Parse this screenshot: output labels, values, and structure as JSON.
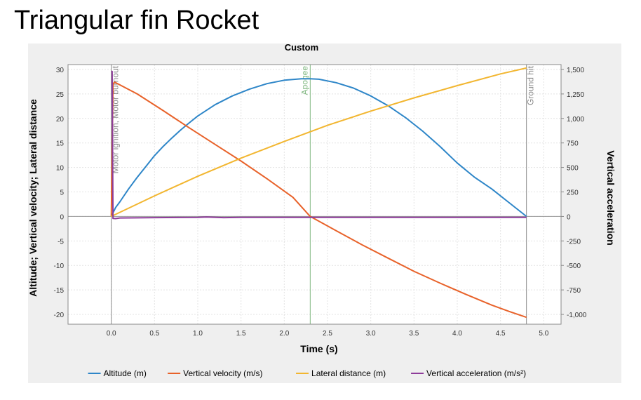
{
  "page": {
    "title": "Triangular fin Rocket"
  },
  "chart_data": {
    "type": "line",
    "title": "Custom",
    "xlabel": "Time (s)",
    "ylabel_left": "Altitude; Vertical velocity; Lateral distance",
    "ylabel_right": "Vertical acceleration",
    "xlim": [
      -0.5,
      5.2
    ],
    "ylim_left": [
      -22,
      31
    ],
    "ylim_right": [
      -1100,
      1550
    ],
    "x_ticks": [
      "0.0",
      "0.5",
      "1.0",
      "1.5",
      "2.0",
      "2.5",
      "3.0",
      "3.5",
      "4.0",
      "4.5",
      "5.0"
    ],
    "y_ticks_left": [
      "-20",
      "-15",
      "-10",
      "-5",
      "0",
      "5",
      "10",
      "15",
      "20",
      "25",
      "30"
    ],
    "y_ticks_right": [
      "-1,000",
      "-750",
      "-500",
      "-250",
      "0",
      "250",
      "500",
      "750",
      "1,000",
      "1,250",
      "1,500"
    ],
    "grid": true,
    "legend_position": "bottom",
    "events": [
      {
        "label": "Motor ignition, Motor burnout",
        "x": 0.0,
        "color": "#8a8a8a"
      },
      {
        "label": "Apogee",
        "x": 2.3,
        "color": "#7fb77f"
      },
      {
        "label": "Ground hit",
        "x": 4.8,
        "color": "#8a8a8a"
      }
    ],
    "series": [
      {
        "name": "Altitude (m)",
        "axis": "left",
        "color": "#2e86c8",
        "x": [
          0,
          0.05,
          0.1,
          0.2,
          0.3,
          0.4,
          0.5,
          0.6,
          0.7,
          0.8,
          0.9,
          1.0,
          1.2,
          1.4,
          1.6,
          1.8,
          2.0,
          2.2,
          2.3,
          2.4,
          2.6,
          2.8,
          3.0,
          3.2,
          3.4,
          3.6,
          3.8,
          4.0,
          4.2,
          4.4,
          4.6,
          4.8
        ],
        "values": [
          0,
          1.8,
          3.0,
          5.6,
          8.0,
          10.2,
          12.4,
          14.3,
          16.0,
          17.6,
          19.1,
          20.5,
          22.8,
          24.6,
          26.0,
          27.1,
          27.8,
          28.1,
          28.1,
          28.0,
          27.3,
          26.2,
          24.6,
          22.6,
          20.2,
          17.4,
          14.3,
          10.9,
          8.0,
          5.6,
          2.8,
          0
        ]
      },
      {
        "name": "Vertical velocity (m/s)",
        "axis": "left",
        "color": "#e8622a",
        "x": [
          0,
          0.02,
          0.04,
          0.3,
          0.6,
          0.9,
          1.2,
          1.5,
          1.8,
          2.1,
          2.3,
          2.6,
          2.9,
          3.2,
          3.5,
          3.8,
          4.1,
          4.4,
          4.6,
          4.8
        ],
        "values": [
          0,
          27.1,
          27.4,
          25.0,
          21.6,
          18.1,
          14.7,
          11.3,
          7.7,
          3.9,
          0,
          -2.9,
          -5.8,
          -8.5,
          -11.2,
          -13.6,
          -15.9,
          -18.1,
          -19.4,
          -20.6
        ]
      },
      {
        "name": "Lateral distance (m)",
        "axis": "left",
        "color": "#f2b630",
        "x": [
          0,
          0.5,
          1.0,
          1.5,
          2.0,
          2.5,
          3.0,
          3.5,
          4.0,
          4.5,
          4.8
        ],
        "values": [
          0,
          4.2,
          8.2,
          11.9,
          15.3,
          18.6,
          21.5,
          24.2,
          26.7,
          29.1,
          30.3
        ]
      },
      {
        "name": "Vertical acceleration (m/s²)",
        "axis": "right",
        "color": "#8e3c9a",
        "x": [
          0,
          0.01,
          0.02,
          0.05,
          0.1,
          0.5,
          1.0,
          1.1,
          1.3,
          1.5,
          2.0,
          2.5,
          3.0,
          3.5,
          4.0,
          4.5,
          4.8
        ],
        "values": [
          1480,
          1480,
          -20,
          -22,
          -16,
          -12,
          -10,
          -6,
          -12,
          -10,
          -10,
          -10,
          -10,
          -10,
          -10,
          -10,
          -10
        ]
      }
    ]
  }
}
